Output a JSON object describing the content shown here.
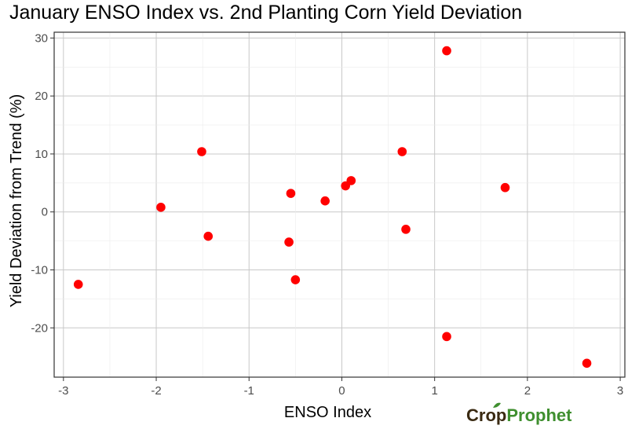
{
  "chart_data": {
    "type": "scatter",
    "title": "January ENSO Index vs. 2nd Planting Corn Yield Deviation",
    "xlabel": "ENSO Index",
    "ylabel": "Yield Deviation from Trend (%)",
    "xlim": [
      -3.1,
      3.05
    ],
    "ylim": [
      -28.5,
      31
    ],
    "x_ticks": [
      -3,
      -2,
      -1,
      0,
      1,
      2,
      3
    ],
    "y_ticks": [
      -20,
      -10,
      0,
      10,
      20,
      30
    ],
    "x_tick_labels": [
      "-3",
      "-2",
      "-1",
      "0",
      "1",
      "2",
      "3"
    ],
    "y_tick_labels": [
      "-20",
      "-10",
      "0",
      "10",
      "20",
      "30"
    ],
    "grid": true,
    "legend": "none",
    "point_color": "#ff0000",
    "points": [
      {
        "x": -2.84,
        "y": -12.5
      },
      {
        "x": -1.95,
        "y": 0.8
      },
      {
        "x": -1.51,
        "y": 10.4
      },
      {
        "x": -1.44,
        "y": -4.2
      },
      {
        "x": -0.57,
        "y": -5.2
      },
      {
        "x": -0.55,
        "y": 3.2
      },
      {
        "x": -0.5,
        "y": -11.7
      },
      {
        "x": -0.18,
        "y": 1.9
      },
      {
        "x": 0.04,
        "y": 4.5
      },
      {
        "x": 0.1,
        "y": 5.4
      },
      {
        "x": 0.65,
        "y": 10.4
      },
      {
        "x": 0.69,
        "y": -3.0
      },
      {
        "x": 1.13,
        "y": 27.8
      },
      {
        "x": 1.13,
        "y": -21.5
      },
      {
        "x": 1.76,
        "y": 4.2
      },
      {
        "x": 2.64,
        "y": -26.1
      }
    ]
  },
  "logo": {
    "text": "CropProphet",
    "brand_brown": "#3a2a12",
    "brand_green": "#3f8f2f"
  }
}
